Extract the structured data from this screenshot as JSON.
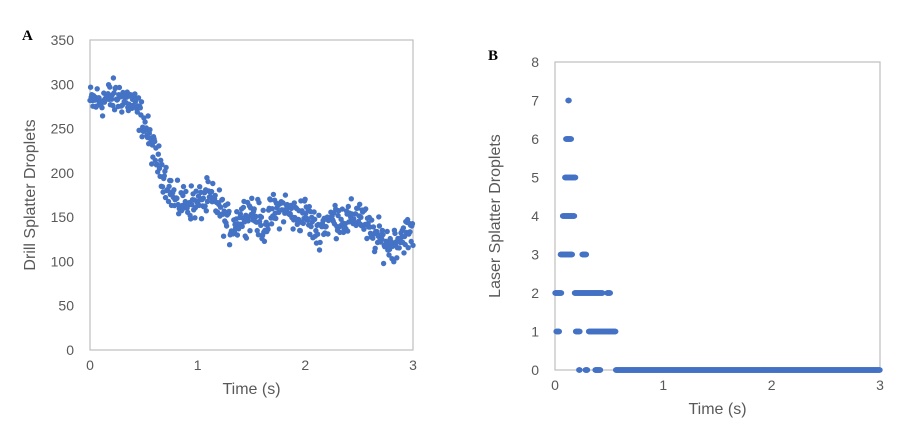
{
  "panels": {
    "a": {
      "letter": "A"
    },
    "b": {
      "letter": "B"
    }
  },
  "colors": {
    "marker": "#4472C4",
    "frame": "#bfbfbf",
    "text": "#595959"
  },
  "chart_data": [
    {
      "type": "scatter",
      "panel": "A",
      "title": "",
      "xlabel": "Time (s)",
      "ylabel": "Drill Splatter Droplets",
      "xlim": [
        0,
        3
      ],
      "ylim": [
        0,
        350
      ],
      "xticks": [
        0,
        1,
        2,
        3
      ],
      "yticks": [
        0,
        50,
        100,
        150,
        200,
        250,
        300,
        350
      ],
      "grid": false,
      "trend": [
        [
          0.0,
          280
        ],
        [
          0.1,
          282
        ],
        [
          0.2,
          285
        ],
        [
          0.3,
          286
        ],
        [
          0.4,
          278
        ],
        [
          0.5,
          258
        ],
        [
          0.6,
          220
        ],
        [
          0.7,
          195
        ],
        [
          0.8,
          165
        ],
        [
          0.9,
          168
        ],
        [
          1.0,
          165
        ],
        [
          1.1,
          172
        ],
        [
          1.2,
          162
        ],
        [
          1.3,
          138
        ],
        [
          1.4,
          150
        ],
        [
          1.5,
          158
        ],
        [
          1.6,
          140
        ],
        [
          1.7,
          155
        ],
        [
          1.8,
          162
        ],
        [
          1.9,
          150
        ],
        [
          2.0,
          155
        ],
        [
          2.1,
          135
        ],
        [
          2.2,
          145
        ],
        [
          2.3,
          150
        ],
        [
          2.4,
          145
        ],
        [
          2.5,
          155
        ],
        [
          2.6,
          132
        ],
        [
          2.7,
          125
        ],
        [
          2.8,
          118
        ],
        [
          2.9,
          130
        ],
        [
          3.0,
          132
        ]
      ],
      "points_per_second": 180,
      "spread": 14
    },
    {
      "type": "scatter",
      "panel": "B",
      "title": "",
      "xlabel": "Time (s)",
      "ylabel": "Laser Splatter Droplets",
      "xlim": [
        0,
        3
      ],
      "ylim": [
        0,
        8
      ],
      "xticks": [
        0,
        1,
        2,
        3
      ],
      "yticks": [
        0,
        1,
        2,
        3,
        4,
        5,
        6,
        7,
        8
      ],
      "grid": false,
      "level_ranges": [
        {
          "y": 7,
          "x": [
            [
              0.12,
              0.13
            ]
          ]
        },
        {
          "y": 6,
          "x": [
            [
              0.1,
              0.15
            ]
          ]
        },
        {
          "y": 5,
          "x": [
            [
              0.09,
              0.19
            ]
          ]
        },
        {
          "y": 4,
          "x": [
            [
              0.07,
              0.18
            ]
          ]
        },
        {
          "y": 3,
          "x": [
            [
              0.05,
              0.16
            ],
            [
              0.25,
              0.29
            ]
          ]
        },
        {
          "y": 2,
          "x": [
            [
              0.0,
              0.06
            ],
            [
              0.18,
              0.44
            ],
            [
              0.48,
              0.51
            ]
          ]
        },
        {
          "y": 1,
          "x": [
            [
              0.01,
              0.04
            ],
            [
              0.19,
              0.23
            ],
            [
              0.31,
              0.56
            ]
          ]
        },
        {
          "y": 0,
          "x": [
            [
              0.22,
              0.23
            ],
            [
              0.28,
              0.3
            ],
            [
              0.37,
              0.42
            ],
            [
              0.56,
              3.0
            ]
          ]
        }
      ],
      "points_per_second": 400
    }
  ]
}
